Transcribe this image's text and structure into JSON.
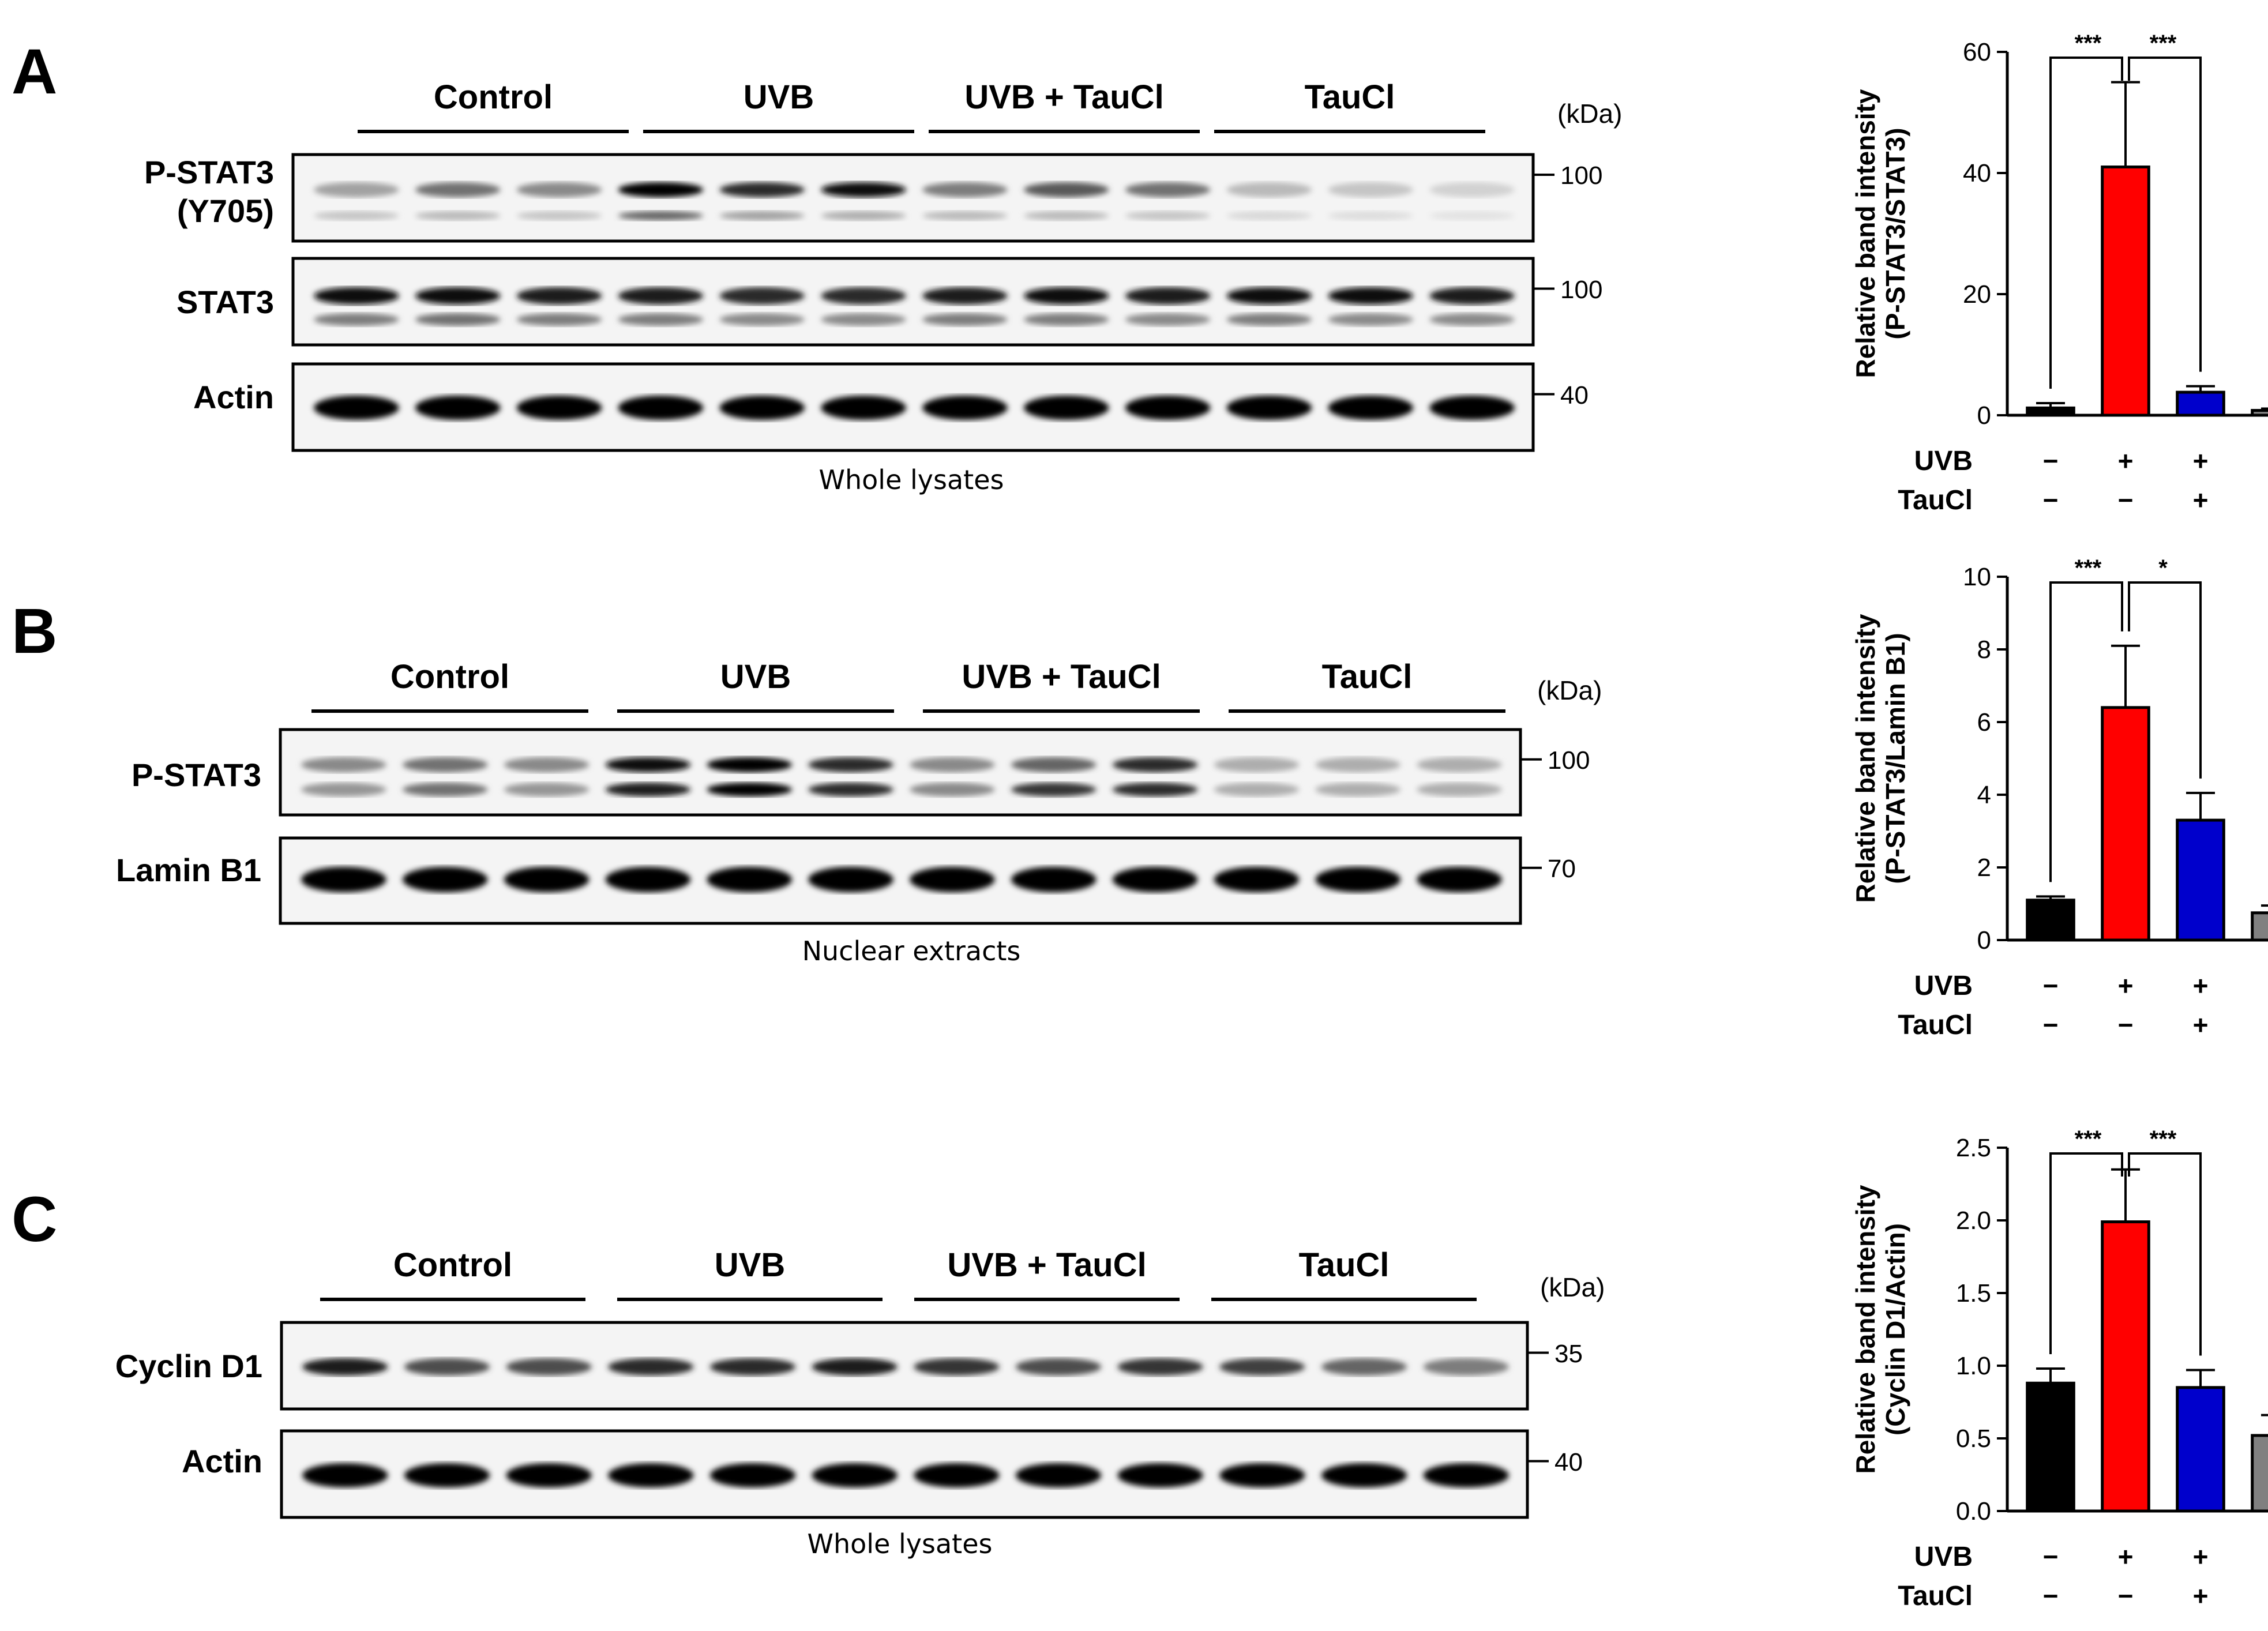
{
  "panels": [
    {
      "letter": "A",
      "groups": [
        "Control",
        "UVB",
        "UVB + TauCl",
        "TauCl"
      ],
      "kda_label": "(kDa)",
      "caption": "Whole lysates",
      "blots": [
        {
          "label": "P-STAT3\n(Y705)",
          "mw": "100"
        },
        {
          "label": "STAT3",
          "mw": "100"
        },
        {
          "label": "Actin",
          "mw": "40"
        }
      ]
    },
    {
      "letter": "B",
      "groups": [
        "Control",
        "UVB",
        "UVB + TauCl",
        "TauCl"
      ],
      "kda_label": "(kDa)",
      "caption": "Nuclear extracts",
      "blots": [
        {
          "label": "P-STAT3",
          "mw": "100"
        },
        {
          "label": "Lamin B1",
          "mw": "70"
        }
      ]
    },
    {
      "letter": "C",
      "groups": [
        "Control",
        "UVB",
        "UVB + TauCl",
        "TauCl"
      ],
      "kda_label": "(kDa)",
      "caption": "Whole lysates",
      "blots": [
        {
          "label": "Cyclin D1",
          "mw": "35"
        },
        {
          "label": "Actin",
          "mw": "40"
        }
      ]
    }
  ],
  "colors": {
    "bar_1": "#000000",
    "bar_2": "#ff0000",
    "bar_3": "#0000cc",
    "bar_4": "#808080"
  },
  "condition_rows": [
    {
      "label": "UVB",
      "signs": [
        "−",
        "+",
        "+",
        "−"
      ]
    },
    {
      "label": "TauCl",
      "signs": [
        "−",
        "−",
        "+",
        "+"
      ]
    }
  ],
  "chart_data": [
    {
      "type": "bar",
      "panel": "A",
      "ylabel": "Relative band intensity\n(P-STAT3/STAT3)",
      "ylim": [
        0,
        60
      ],
      "yticks": [
        "0",
        "20",
        "40",
        "60"
      ],
      "values": [
        1.2,
        41.0,
        3.8,
        0.8
      ],
      "errors": [
        0.8,
        14.0,
        1.0,
        0.3
      ],
      "significance": [
        {
          "between": [
            0,
            1
          ],
          "label": "***"
        },
        {
          "between": [
            1,
            2
          ],
          "label": "***"
        }
      ]
    },
    {
      "type": "bar",
      "panel": "B",
      "ylabel": "Relative band intensity\n(P-STAT3/Lamin B1)",
      "ylim": [
        0,
        10
      ],
      "yticks": [
        "0",
        "2",
        "4",
        "6",
        "8",
        "10"
      ],
      "values": [
        1.1,
        6.4,
        3.3,
        0.75
      ],
      "errors": [
        0.1,
        1.7,
        0.75,
        0.2
      ],
      "significance": [
        {
          "between": [
            0,
            1
          ],
          "label": "***"
        },
        {
          "between": [
            1,
            2
          ],
          "label": "*"
        }
      ]
    },
    {
      "type": "bar",
      "panel": "C",
      "ylabel": "Relative band intensity\n(Cyclin D1/Actin)",
      "ylim": [
        0,
        2.5
      ],
      "yticks": [
        "0.0",
        "0.5",
        "1.0",
        "1.5",
        "2.0",
        "2.5"
      ],
      "values": [
        0.88,
        1.99,
        0.85,
        0.52
      ],
      "errors": [
        0.1,
        0.36,
        0.12,
        0.14
      ],
      "significance": [
        {
          "between": [
            0,
            1
          ],
          "label": "***"
        },
        {
          "between": [
            1,
            2
          ],
          "label": "***"
        }
      ]
    }
  ]
}
